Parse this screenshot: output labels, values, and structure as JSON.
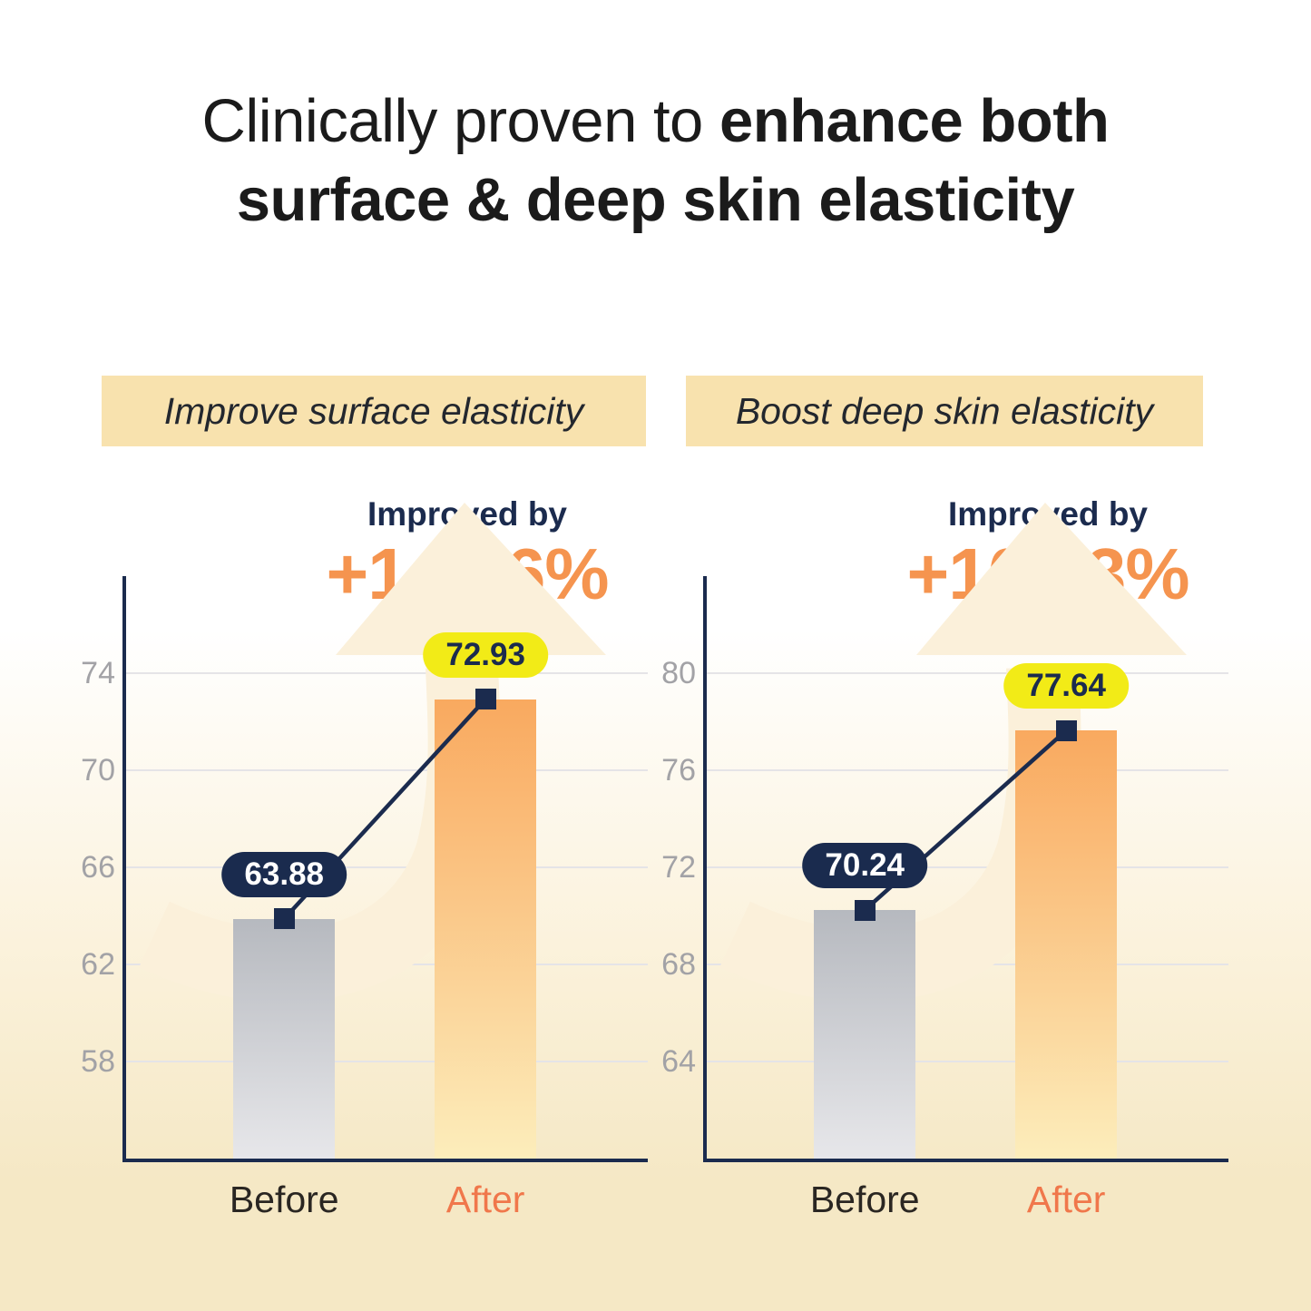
{
  "title": {
    "line1_regular": "Clinically proven to ",
    "line1_bold": "enhance both",
    "line2_bold": "surface & deep skin elasticity"
  },
  "colors": {
    "navy": "#1B2B4E",
    "accent_orange": "#F5944F",
    "after_orange": "#F0774B",
    "pill_navy": "#1A2B4E",
    "pill_yellow": "#F2EB17",
    "banner_bg": "#F8E2AE",
    "arrow_cream": "#FBF0DA",
    "page_cream": "#F5E8C5",
    "gridline": "#E5E4E7",
    "tick_gray": "#A2A2A6",
    "bar_gray_top": "#B6B9BF",
    "bar_gray_bottom": "#E7E7EA",
    "bar_orange_top": "#F9A95F",
    "bar_orange_bottom": "#FCEDBB"
  },
  "chart_data": [
    {
      "type": "bar",
      "banner": "Improve surface elasticity",
      "header_label": "Improved by",
      "improvement": "+14.16%",
      "categories": [
        "Before",
        "After"
      ],
      "values": [
        63.88,
        72.93
      ],
      "value_labels": [
        "63.88",
        "72.93"
      ],
      "yticks": [
        58,
        62,
        66,
        70,
        74
      ],
      "ylim": [
        54,
        78
      ],
      "xlabel": "",
      "ylabel": "",
      "grid": true,
      "legend_position": "none"
    },
    {
      "type": "bar",
      "banner": "Boost deep skin elasticity",
      "header_label": "Improved by",
      "improvement": "+10.53%",
      "categories": [
        "Before",
        "After"
      ],
      "values": [
        70.24,
        77.64
      ],
      "value_labels": [
        "70.24",
        "77.64"
      ],
      "yticks": [
        64,
        68,
        72,
        76,
        80
      ],
      "ylim": [
        60,
        84
      ],
      "xlabel": "",
      "ylabel": "",
      "grid": true,
      "legend_position": "none"
    }
  ]
}
